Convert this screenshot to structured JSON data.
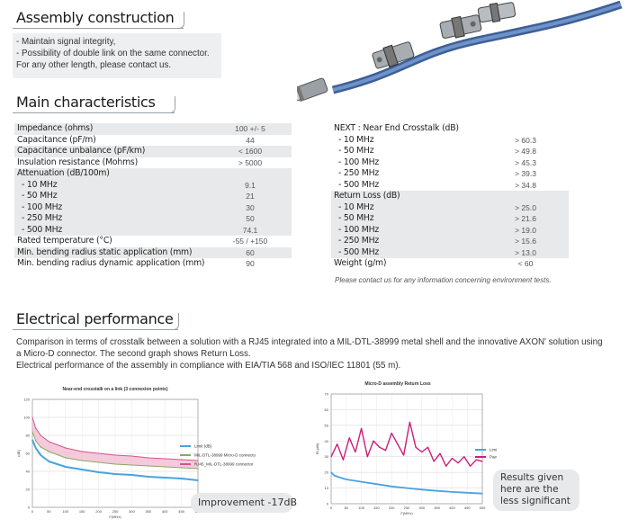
{
  "assembly": {
    "title": "Assembly construction",
    "lines": [
      "- Maintain signal integrity,",
      "- Possibility of double link on the same connector.",
      "For any other length, please contact us."
    ]
  },
  "main": {
    "title": "Main characteristics",
    "left_rows": [
      {
        "label": "Impedance (ohms)",
        "value": "100 +/- 5",
        "shaded": true
      },
      {
        "label": "Capacitance (pF/m)",
        "value": "44",
        "shaded": false
      },
      {
        "label": "Capacitance unbalance (pF/km)",
        "value": "< 1600",
        "shaded": true
      },
      {
        "label": "Insulation resistance (Mohms)",
        "value": "> 5000",
        "shaded": false
      },
      {
        "label": "Attenuation (dB/100m)",
        "value": "",
        "shaded": true
      },
      {
        "label": "- 10 MHz",
        "value": "9.1",
        "shaded": true,
        "sub": true
      },
      {
        "label": "- 50 MHz",
        "value": "21",
        "shaded": true,
        "sub": true
      },
      {
        "label": "- 100 MHz",
        "value": "30",
        "shaded": true,
        "sub": true
      },
      {
        "label": "- 250 MHz",
        "value": "50",
        "shaded": true,
        "sub": true
      },
      {
        "label": "- 500 MHz",
        "value": "74.1",
        "shaded": true,
        "sub": true
      },
      {
        "label": "Rated temperature (°C)",
        "value": "-55 / +150",
        "shaded": false
      },
      {
        "label": "Min. bending radius static application (mm)",
        "value": "60",
        "shaded": true
      },
      {
        "label": "Min. bending radius dynamic application (mm)",
        "value": "90",
        "shaded": false
      }
    ],
    "right_rows": [
      {
        "label": "NEXT : Near End Crosstalk (dB)",
        "value": "",
        "shaded": false
      },
      {
        "label": "- 10 MHz",
        "value": "> 60.3",
        "shaded": false,
        "sub": true
      },
      {
        "label": "- 50 MHz",
        "value": "> 49.8",
        "shaded": false,
        "sub": true
      },
      {
        "label": "- 100 MHz",
        "value": "> 45.3",
        "shaded": false,
        "sub": true
      },
      {
        "label": "- 250 MHz",
        "value": "> 39.3",
        "shaded": false,
        "sub": true
      },
      {
        "label": "- 500 MHz",
        "value": "> 34.8",
        "shaded": false,
        "sub": true
      },
      {
        "label": "Return Loss (dB)",
        "value": "",
        "shaded": true
      },
      {
        "label": "- 10 MHz",
        "value": "> 25.0",
        "shaded": true,
        "sub": true
      },
      {
        "label": "- 50 MHz",
        "value": "> 21.6",
        "shaded": true,
        "sub": true
      },
      {
        "label": "- 100 MHz",
        "value": "> 19.0",
        "shaded": true,
        "sub": true
      },
      {
        "label": "- 250 MHz",
        "value": "> 15.6",
        "shaded": true,
        "sub": true
      },
      {
        "label": "- 500 MHz",
        "value": "> 13.0",
        "shaded": true,
        "sub": true
      },
      {
        "label": "Weight (g/m)",
        "value": "< 60",
        "shaded": false
      }
    ],
    "note": "Please contact us for any information concerning environment tests."
  },
  "electrical": {
    "title": "Electrical performance",
    "lines": [
      "Comparison in terms of crosstalk between a solution with a RJ45 integrated into a MIL-DTL-38999 metal shell and the innovative AXON' solution using",
      "a Micro-D connector. The second graph shows Return Loss.",
      "Electrical performance of the assembly in compliance with EIA/TIA 568 and ISO/IEC 11801 (55 m)."
    ],
    "callout_improvement": "Improvement -17dB",
    "callout_results": [
      "Results given",
      "here are the",
      "less significant"
    ]
  },
  "colors": {
    "limit": "#4aa3df",
    "rj45_fill": "#f2b8cf",
    "rj45_line": "#d4558f",
    "microd": "#8aa860",
    "pairs": "#cc1f7a",
    "cable": "#5a7fb8"
  },
  "chart_data": [
    {
      "type": "line",
      "title": "Near-end crosstalk on a link (3 connexion points)",
      "xlabel": "F(MHz)",
      "ylabel": "(dB)",
      "xlim": [
        0,
        500
      ],
      "ylim": [
        0,
        120
      ],
      "x_ticks": [
        "0",
        "50",
        "100",
        "150",
        "200",
        "250",
        "300",
        "350",
        "400",
        "450",
        "500"
      ],
      "y_ticks": [
        "0",
        "20",
        "40",
        "60",
        "80",
        "100",
        "120"
      ],
      "legend": "right",
      "series": [
        {
          "name": "Limit (dB)",
          "x": [
            0,
            10,
            25,
            50,
            100,
            150,
            200,
            250,
            300,
            350,
            400,
            450,
            500
          ],
          "y": [
            75,
            66,
            58,
            51,
            45,
            42,
            39,
            37,
            36,
            34,
            33,
            32,
            30
          ]
        },
        {
          "name": "MIL-DTL-38999 Micro-D connector",
          "x": [
            0,
            10,
            25,
            50,
            100,
            150,
            200,
            250,
            300,
            350,
            400,
            450,
            500
          ],
          "y": [
            84,
            74,
            67,
            62,
            55,
            52,
            50,
            48,
            47,
            46,
            45,
            44,
            43
          ]
        },
        {
          "name": "RJ45_MIL-DTL-38999 connector",
          "x": [
            0,
            10,
            25,
            50,
            100,
            150,
            200,
            250,
            300,
            350,
            400,
            450,
            500
          ],
          "y": [
            100,
            88,
            80,
            73,
            66,
            62,
            60,
            58,
            57,
            55,
            54,
            53,
            52
          ]
        }
      ]
    },
    {
      "type": "line",
      "title": "Micro-D assembly Return Loss",
      "xlabel": "F(MHz)",
      "ylabel": "RL(dB)",
      "xlim": [
        0,
        500
      ],
      "ylim": [
        0,
        70
      ],
      "x_ticks": [
        "0",
        "50",
        "100",
        "150",
        "200",
        "250",
        "300",
        "350",
        "400",
        "450",
        "500"
      ],
      "y_ticks": [
        "0",
        "10",
        "20",
        "30",
        "40",
        "50",
        "60",
        "70"
      ],
      "legend": "right",
      "series": [
        {
          "name": "Limit (dB)",
          "x": [
            0,
            10,
            25,
            50,
            100,
            150,
            200,
            250,
            300,
            350,
            400,
            450,
            500
          ],
          "y": [
            20,
            18,
            17,
            15.5,
            14,
            12.5,
            11,
            10,
            9,
            8.2,
            7.5,
            7,
            6.5
          ]
        },
        {
          "name": "Paire 1-2",
          "x": [
            0,
            20,
            40,
            60,
            80,
            100,
            120,
            140,
            160,
            180,
            200,
            220,
            240,
            260,
            280,
            300,
            320,
            340,
            360,
            380,
            400,
            420,
            440,
            460,
            480,
            500
          ],
          "y": [
            30,
            38,
            28,
            42,
            33,
            48,
            30,
            40,
            36,
            34,
            45,
            38,
            31,
            52,
            36,
            33,
            36,
            27,
            32,
            24,
            29,
            26,
            30,
            24,
            28,
            27
          ]
        }
      ]
    }
  ]
}
